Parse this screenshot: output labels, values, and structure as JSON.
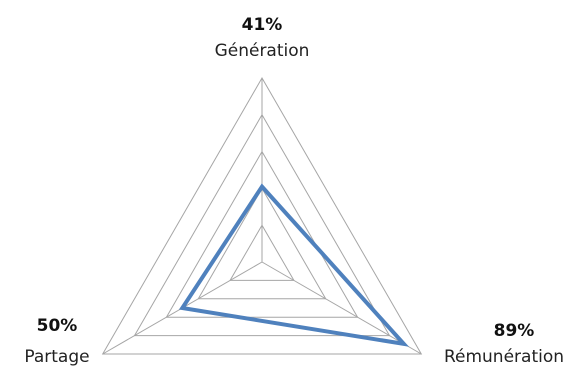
{
  "chart_data": {
    "type": "radar",
    "title": "",
    "axes": [
      {
        "label": "Génération",
        "value": 41,
        "value_label": "41%"
      },
      {
        "label": "Rémunération",
        "value": 89,
        "value_label": "89%"
      },
      {
        "label": "Partage",
        "value": 50,
        "value_label": "50%"
      }
    ],
    "range": [
      0,
      100
    ],
    "grid_levels": 5,
    "grid": true,
    "legend": "none",
    "colors": {
      "series": "#4f81bd",
      "grid": "#a6a6a6"
    }
  }
}
